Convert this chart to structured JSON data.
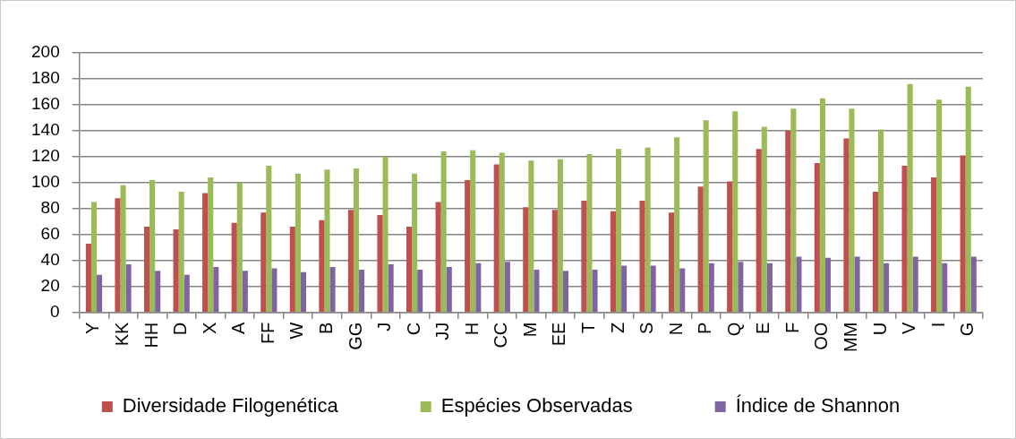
{
  "chart_data": {
    "type": "bar",
    "categories": [
      "Y",
      "KK",
      "HH",
      "D",
      "X",
      "A",
      "FF",
      "W",
      "B",
      "GG",
      "J",
      "C",
      "JJ",
      "H",
      "CC",
      "M",
      "EE",
      "T",
      "Z",
      "S",
      "N",
      "P",
      "Q",
      "E",
      "F",
      "OO",
      "MM",
      "U",
      "V",
      "I",
      "G"
    ],
    "series": [
      {
        "name": "Diversidade Filogenética",
        "color": "#c0504d",
        "values": [
          53,
          88,
          66,
          64,
          92,
          69,
          77,
          66,
          71,
          79,
          75,
          66,
          85,
          102,
          114,
          81,
          79,
          86,
          78,
          86,
          77,
          97,
          101,
          126,
          140,
          115,
          134,
          93,
          113,
          104,
          121
        ]
      },
      {
        "name": "Espécies Observadas",
        "color": "#9bbb59",
        "values": [
          85,
          98,
          102,
          93,
          104,
          100,
          113,
          107,
          110,
          111,
          120,
          107,
          124,
          125,
          123,
          117,
          118,
          122,
          126,
          127,
          135,
          148,
          155,
          143,
          157,
          165,
          157,
          141,
          176,
          164,
          174
        ]
      },
      {
        "name": "Índice de Shannon",
        "color": "#8064a2",
        "values": [
          29,
          37,
          32,
          29,
          35,
          32,
          34,
          31,
          35,
          33,
          37,
          33,
          35,
          38,
          39,
          33,
          32,
          33,
          36,
          36,
          34,
          38,
          39,
          38,
          43,
          42,
          43,
          38,
          43,
          38,
          43
        ]
      }
    ],
    "ylim": [
      0,
      200
    ],
    "yticks": [
      0,
      20,
      40,
      60,
      80,
      100,
      120,
      140,
      160,
      180,
      200
    ],
    "grid": "y",
    "legend": "bottom"
  }
}
